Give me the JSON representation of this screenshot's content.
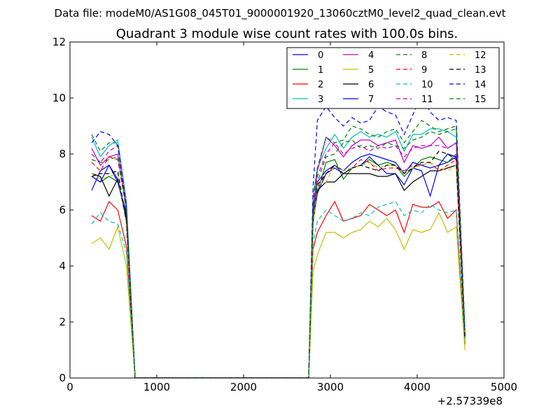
{
  "suptitle": "Data file: modeM0/AS1G08_045T01_9000001920_13060cztM0_level2_quad_clean.evt",
  "chart_data": {
    "type": "line",
    "title": "Quadrant 3 module wise count rates with 100.0s bins.",
    "xlabel": "",
    "ylabel": "",
    "xlim": [
      0,
      5000
    ],
    "ylim": [
      0,
      12
    ],
    "x_offset_label": "+2.57339e8",
    "x_ticks": [
      0,
      1000,
      2000,
      3000,
      4000,
      5000
    ],
    "x_tick_labels": [
      "0",
      "1000",
      "2000",
      "3000",
      "4000",
      "5000"
    ],
    "y_ticks": [
      0,
      2,
      4,
      6,
      8,
      10,
      12
    ],
    "y_tick_labels": [
      "0",
      "2",
      "4",
      "6",
      "8",
      "10",
      "12"
    ],
    "grid": false,
    "legend_position": "top-right",
    "legend_columns": 4,
    "x": [
      250,
      350,
      450,
      550,
      650,
      750,
      850,
      950,
      1050,
      1150,
      1250,
      1350,
      1450,
      1550,
      1650,
      1750,
      1850,
      1950,
      2050,
      2150,
      2250,
      2350,
      2450,
      2550,
      2650,
      2750,
      2800,
      2850,
      2950,
      3050,
      3150,
      3250,
      3350,
      3450,
      3550,
      3650,
      3750,
      3850,
      3950,
      4050,
      4150,
      4250,
      4350,
      4450,
      4550
    ],
    "series": [
      {
        "name": "0",
        "color": "#0000ff",
        "dash": "solid",
        "values": [
          6.7,
          7.4,
          7.6,
          7.1,
          5.6,
          0,
          0,
          0,
          0,
          0,
          0,
          0,
          0,
          0,
          0,
          0,
          0,
          0,
          0,
          0,
          0,
          0,
          0,
          0,
          0,
          0,
          5.8,
          7.0,
          7.4,
          7.6,
          7.4,
          7.7,
          7.9,
          8.0,
          7.9,
          7.8,
          7.7,
          7.3,
          7.7,
          7.6,
          7.5,
          7.6,
          7.7,
          7.9,
          1.5
        ]
      },
      {
        "name": "1",
        "color": "#008000",
        "dash": "solid",
        "values": [
          7.2,
          7.0,
          7.2,
          7.0,
          5.8,
          0,
          0,
          0,
          0,
          0,
          0,
          0,
          0,
          0,
          0,
          0,
          0,
          0,
          0,
          0,
          0,
          0,
          0,
          0,
          0,
          0,
          5.5,
          6.6,
          7.7,
          7.8,
          7.1,
          7.5,
          7.6,
          7.8,
          7.6,
          7.7,
          7.6,
          7.2,
          7.5,
          7.8,
          7.9,
          7.8,
          7.7,
          8.0,
          1.3
        ]
      },
      {
        "name": "2",
        "color": "#ff0000",
        "dash": "solid",
        "values": [
          5.8,
          5.6,
          6.3,
          6.0,
          4.7,
          0,
          0,
          0,
          0,
          0,
          0,
          0,
          0,
          0,
          0,
          0,
          0,
          0,
          0,
          0,
          0,
          0,
          0,
          0,
          0,
          0,
          4.6,
          5.2,
          5.8,
          6.3,
          5.6,
          5.7,
          5.8,
          6.2,
          6.0,
          5.8,
          6.0,
          5.2,
          6.2,
          6.1,
          6.1,
          6.3,
          5.7,
          6.0,
          1.2
        ]
      },
      {
        "name": "3",
        "color": "#00bfbf",
        "dash": "solid",
        "values": [
          8.6,
          7.9,
          8.3,
          8.5,
          6.3,
          0,
          0,
          0,
          0,
          0,
          0,
          0,
          0,
          0,
          0,
          0,
          0,
          0,
          0,
          0,
          0,
          0,
          0,
          0,
          0,
          0,
          6.5,
          7.5,
          8.2,
          8.7,
          8.2,
          8.6,
          8.8,
          8.6,
          8.7,
          8.6,
          8.8,
          8.1,
          8.7,
          8.7,
          8.9,
          8.9,
          8.8,
          8.6,
          1.6
        ]
      },
      {
        "name": "4",
        "color": "#bf00bf",
        "dash": "solid",
        "values": [
          8.2,
          7.6,
          7.9,
          8.0,
          6.0,
          0,
          0,
          0,
          0,
          0,
          0,
          0,
          0,
          0,
          0,
          0,
          0,
          0,
          0,
          0,
          0,
          0,
          0,
          0,
          0,
          0,
          6.0,
          7.4,
          8.6,
          8.3,
          7.9,
          8.3,
          8.5,
          8.5,
          8.3,
          8.4,
          8.5,
          7.7,
          8.3,
          8.2,
          8.3,
          8.6,
          8.2,
          8.4,
          1.5
        ]
      },
      {
        "name": "5",
        "color": "#bfbf00",
        "dash": "solid",
        "values": [
          4.8,
          5.0,
          4.6,
          5.4,
          4.0,
          0,
          0,
          0,
          0,
          0,
          0,
          0,
          0,
          0,
          0,
          0,
          0,
          0,
          0,
          0,
          0,
          0,
          0,
          0,
          0,
          0,
          3.8,
          4.4,
          5.2,
          5.2,
          5.0,
          5.2,
          5.3,
          5.6,
          5.4,
          5.7,
          5.3,
          4.6,
          5.3,
          5.2,
          5.3,
          5.9,
          5.2,
          5.4,
          1.0
        ]
      },
      {
        "name": "6",
        "color": "#000000",
        "dash": "solid",
        "values": [
          7.3,
          7.2,
          6.5,
          7.1,
          5.7,
          0,
          0,
          0,
          0,
          0,
          0,
          0,
          0,
          0,
          0,
          0,
          0,
          0,
          0,
          0,
          0,
          0,
          0,
          0,
          0,
          0,
          5.8,
          6.7,
          7.0,
          7.0,
          7.3,
          7.3,
          7.3,
          7.3,
          7.2,
          7.2,
          7.3,
          6.7,
          7.0,
          7.2,
          7.4,
          7.4,
          7.5,
          7.6,
          1.4
        ]
      },
      {
        "name": "7",
        "color": "#0000ff",
        "dash": "solid",
        "values": [
          7.2,
          7.0,
          7.6,
          7.0,
          5.9,
          0,
          0,
          0,
          0,
          0,
          0,
          0,
          0,
          0,
          0,
          0,
          0,
          0,
          0,
          0,
          0,
          0,
          0,
          0,
          0,
          0,
          5.8,
          6.6,
          7.3,
          7.5,
          7.3,
          7.5,
          7.6,
          7.9,
          7.6,
          7.3,
          7.3,
          6.9,
          7.5,
          7.4,
          6.5,
          7.6,
          8.0,
          7.9,
          1.5
        ]
      },
      {
        "name": "8",
        "color": "#008000",
        "dash": "dashed",
        "values": [
          8.7,
          8.1,
          8.4,
          8.4,
          6.2,
          0,
          0,
          0,
          0,
          0,
          0,
          0,
          0,
          0,
          0,
          0,
          0,
          0,
          0,
          0,
          0,
          0,
          0,
          0,
          0,
          0,
          6.3,
          7.5,
          8.6,
          8.4,
          8.5,
          9.0,
          8.9,
          8.7,
          8.6,
          8.8,
          8.9,
          8.4,
          8.8,
          9.2,
          9.0,
          8.8,
          8.9,
          9.0,
          1.6
        ]
      },
      {
        "name": "9",
        "color": "#ff0000",
        "dash": "dashed",
        "values": [
          7.7,
          7.4,
          7.9,
          7.8,
          6.0,
          0,
          0,
          0,
          0,
          0,
          0,
          0,
          0,
          0,
          0,
          0,
          0,
          0,
          0,
          0,
          0,
          0,
          0,
          0,
          0,
          0,
          5.7,
          6.8,
          7.3,
          7.6,
          7.4,
          7.5,
          7.8,
          7.7,
          7.4,
          7.5,
          7.5,
          7.4,
          7.6,
          7.6,
          7.7,
          7.4,
          7.6,
          7.8,
          1.4
        ]
      },
      {
        "name": "10",
        "color": "#00bfbf",
        "dash": "dashed",
        "values": [
          5.5,
          5.9,
          5.6,
          5.5,
          4.5,
          0,
          0,
          0,
          0,
          0,
          0,
          0,
          0,
          0,
          0,
          0,
          0,
          0,
          0,
          0,
          0,
          0,
          0,
          0,
          0,
          0,
          4.8,
          5.6,
          6.0,
          5.8,
          5.6,
          5.7,
          5.9,
          5.8,
          6.1,
          6.2,
          6.3,
          5.8,
          6.0,
          5.9,
          6.2,
          6.0,
          5.9,
          6.0,
          1.2
        ]
      },
      {
        "name": "11",
        "color": "#bf00bf",
        "dash": "dashed",
        "values": [
          8.0,
          7.7,
          8.1,
          8.3,
          6.2,
          0,
          0,
          0,
          0,
          0,
          0,
          0,
          0,
          0,
          0,
          0,
          0,
          0,
          0,
          0,
          0,
          0,
          0,
          0,
          0,
          0,
          6.1,
          7.2,
          8.0,
          8.4,
          8.0,
          8.2,
          8.3,
          8.1,
          8.3,
          8.2,
          8.3,
          7.9,
          8.2,
          8.3,
          8.3,
          8.3,
          8.2,
          8.4,
          1.5
        ]
      },
      {
        "name": "12",
        "color": "#bfbf00",
        "dash": "dashed",
        "values": [
          7.3,
          7.1,
          7.2,
          7.3,
          5.5,
          0,
          0,
          0,
          0,
          0,
          0,
          0,
          0,
          0,
          0,
          0,
          0,
          0,
          0,
          0,
          0,
          0,
          0,
          0,
          0,
          0,
          5.4,
          6.9,
          7.0,
          7.6,
          7.4,
          7.5,
          7.6,
          7.7,
          7.5,
          7.6,
          7.6,
          7.3,
          7.5,
          7.6,
          7.7,
          7.5,
          7.4,
          7.6,
          1.3
        ]
      },
      {
        "name": "13",
        "color": "#000000",
        "dash": "dashed",
        "values": [
          7.2,
          7.3,
          7.3,
          7.4,
          5.6,
          0,
          0,
          0,
          0,
          0,
          0,
          0,
          0,
          0,
          0,
          0,
          0,
          0,
          0,
          0,
          0,
          0,
          0,
          0,
          0,
          0,
          5.9,
          6.9,
          7.3,
          7.6,
          7.3,
          7.5,
          7.6,
          7.5,
          7.4,
          7.6,
          7.6,
          7.3,
          7.5,
          7.7,
          7.7,
          8.1,
          8.0,
          7.8,
          1.4
        ]
      },
      {
        "name": "14",
        "color": "#0000ff",
        "dash": "dashed",
        "values": [
          8.4,
          8.8,
          8.7,
          8.3,
          6.1,
          0,
          0,
          0,
          0,
          0,
          0,
          0,
          0,
          0,
          0,
          0,
          0,
          0,
          0,
          0,
          0,
          0,
          0,
          0,
          0,
          0,
          6.8,
          9.2,
          9.7,
          9.3,
          9.0,
          9.3,
          9.1,
          9.2,
          9.7,
          9.5,
          9.4,
          8.7,
          9.4,
          10.1,
          9.5,
          9.2,
          9.3,
          9.2,
          1.7
        ]
      },
      {
        "name": "15",
        "color": "#008000",
        "dash": "dashed",
        "values": [
          7.8,
          7.7,
          7.8,
          7.9,
          6.0,
          0,
          0,
          0,
          0,
          0,
          0,
          0,
          0,
          0,
          0,
          0,
          0,
          0,
          0,
          0,
          0,
          0,
          0,
          0,
          0,
          0,
          5.9,
          7.0,
          7.9,
          8.0,
          8.4,
          8.5,
          8.2,
          8.3,
          8.2,
          8.4,
          8.3,
          8.2,
          8.5,
          8.6,
          8.8,
          8.7,
          8.8,
          8.9,
          1.6
        ]
      }
    ]
  }
}
